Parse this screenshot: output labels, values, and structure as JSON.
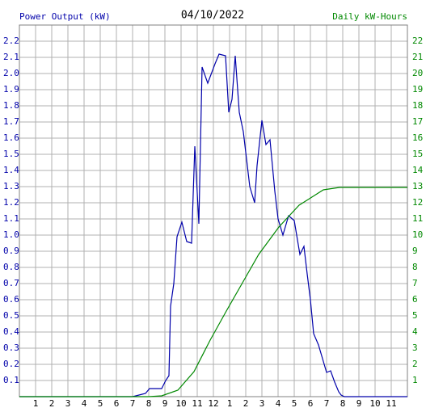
{
  "chart_data": {
    "type": "line",
    "title": "04/10/2022",
    "y_label": "Power Output (kW)",
    "y2_label": "Daily kW-Hours",
    "xlim": [
      0,
      24
    ],
    "xticks": [
      1,
      2,
      3,
      4,
      5,
      6,
      7,
      8,
      9,
      10,
      11,
      12,
      {
        "value": 13,
        "label": "1"
      },
      {
        "value": 14,
        "label": "2"
      },
      {
        "value": 15,
        "label": "3"
      },
      {
        "value": 16,
        "label": "4"
      },
      {
        "value": 17,
        "label": "5"
      },
      {
        "value": 18,
        "label": "6"
      },
      {
        "value": 19,
        "label": "7"
      },
      {
        "value": 20,
        "label": "8"
      },
      {
        "value": 21,
        "label": "9"
      },
      {
        "value": 22,
        "label": "10"
      },
      {
        "value": 23,
        "label": "11"
      }
    ],
    "ylim": [
      0,
      2.3
    ],
    "yticks": [
      0.1,
      0.2,
      0.3,
      0.4,
      0.5,
      0.6,
      0.7,
      0.8,
      0.9,
      {
        "value": 1,
        "label": "1.0"
      },
      1.1,
      1.2,
      1.3,
      1.4,
      1.5,
      1.6,
      1.7,
      1.8,
      1.9,
      {
        "value": 2,
        "label": "2.0"
      },
      2.1,
      2.2
    ],
    "y2lim": [
      0,
      23
    ],
    "y2ticks": [
      1,
      2,
      3,
      4,
      5,
      6,
      7,
      8,
      9,
      10,
      11,
      12,
      13,
      14,
      15,
      16,
      17,
      18,
      19,
      20,
      21,
      22
    ],
    "grid": true,
    "series": [
      {
        "name": "Power Output (kW)",
        "color": "#0000aa",
        "axis": "y",
        "x": [
          0,
          7,
          7.2,
          7.8,
          8.05,
          8.8,
          9.05,
          9.25,
          9.35,
          9.55,
          9.75,
          10.05,
          10.35,
          10.65,
          10.85,
          11.1,
          11.3,
          11.65,
          12.1,
          12.35,
          12.75,
          12.95,
          13.15,
          13.35,
          13.6,
          13.85,
          14.25,
          14.55,
          14.7,
          15,
          15.25,
          15.5,
          15.8,
          16,
          16.3,
          16.65,
          17,
          17.35,
          17.6,
          17.8,
          18,
          18.2,
          18.5,
          19,
          19.25,
          19.5,
          19.75,
          19.9,
          20.1,
          24
        ],
        "values": [
          0,
          0,
          0.005,
          0.02,
          0.05,
          0.05,
          0.1,
          0.13,
          0.56,
          0.7,
          0.99,
          1.08,
          0.96,
          0.95,
          1.55,
          1.07,
          2.04,
          1.94,
          2.06,
          2.12,
          2.11,
          1.76,
          1.84,
          2.11,
          1.76,
          1.64,
          1.3,
          1.2,
          1.43,
          1.71,
          1.56,
          1.59,
          1.27,
          1.1,
          1.0,
          1.12,
          1.09,
          0.88,
          0.93,
          0.76,
          0.6,
          0.39,
          0.32,
          0.15,
          0.16,
          0.09,
          0.03,
          0.01,
          0,
          0
        ]
      },
      {
        "name": "Daily kW-Hours",
        "color": "#008800",
        "axis": "y2",
        "x": [
          0,
          8,
          8.8,
          9.8,
          10.8,
          11.8,
          12.8,
          13.8,
          14.8,
          16.05,
          17.3,
          18.8,
          19.8,
          24
        ],
        "values": [
          0,
          0,
          0.05,
          0.4,
          1.55,
          3.5,
          5.3,
          7.05,
          8.8,
          10.5,
          11.85,
          12.8,
          12.95,
          12.95
        ]
      }
    ]
  }
}
